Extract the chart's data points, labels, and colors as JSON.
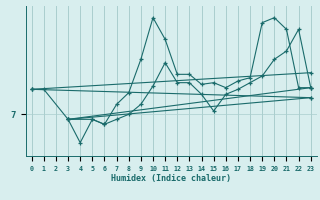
{
  "xlabel": "Humidex (Indice chaleur)",
  "bg_color": "#d8eeee",
  "line_color": "#1a6b6b",
  "grid_color": "#aacece",
  "ytick_labels": [
    "7"
  ],
  "ytick_vals": [
    7
  ],
  "xmin": 0,
  "xmax": 23,
  "ymin": 4.5,
  "ymax": 13.5,
  "line1_x": [
    0,
    1,
    3,
    5,
    6,
    7,
    8,
    9,
    10,
    11,
    12,
    13,
    14,
    15,
    16,
    17,
    18,
    19,
    20,
    21,
    22,
    23
  ],
  "line1_y": [
    8.5,
    8.5,
    6.7,
    6.7,
    6.4,
    7.6,
    8.3,
    10.3,
    12.8,
    11.5,
    9.4,
    9.4,
    8.8,
    8.9,
    8.6,
    9.0,
    9.2,
    12.5,
    12.8,
    12.1,
    8.6,
    8.6
  ],
  "line2_x": [
    3,
    4,
    5,
    6,
    7,
    8,
    9,
    10,
    11,
    12,
    13,
    14,
    15,
    16,
    17,
    18,
    19,
    20,
    21,
    22,
    23
  ],
  "line2_y": [
    6.7,
    5.3,
    6.7,
    6.4,
    6.7,
    7.0,
    7.6,
    8.7,
    10.1,
    8.9,
    8.9,
    8.2,
    7.2,
    8.2,
    8.5,
    8.9,
    9.3,
    10.3,
    10.8,
    12.1,
    8.6
  ],
  "line3_x": [
    0,
    23
  ],
  "line3_y": [
    8.5,
    9.5
  ],
  "line4_x": [
    0,
    23
  ],
  "line4_y": [
    8.5,
    8.0
  ],
  "line5_x": [
    3,
    23
  ],
  "line5_y": [
    6.7,
    8.6
  ],
  "line6_x": [
    3,
    23
  ],
  "line6_y": [
    6.7,
    8.0
  ]
}
